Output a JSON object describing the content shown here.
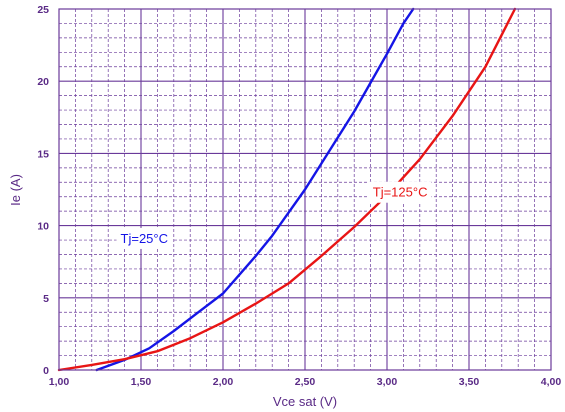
{
  "chart_data": {
    "type": "line",
    "title": "",
    "xlabel": "Vce sat (V)",
    "ylabel": "Ie (A)",
    "xlim": [
      1.0,
      4.0
    ],
    "ylim": [
      0,
      25
    ],
    "grid": true,
    "x_ticks": [
      "1,00",
      "1,50",
      "2,00",
      "2,50",
      "3,00",
      "3,50",
      "4,00"
    ],
    "y_ticks": [
      "0",
      "5",
      "10",
      "15",
      "20",
      "25"
    ],
    "series": [
      {
        "name": "Tj=25°C",
        "color": "#1515e6",
        "x": [
          1.23,
          1.4,
          1.55,
          1.7,
          1.85,
          2.0,
          2.1,
          2.2,
          2.3,
          2.4,
          2.5,
          2.6,
          2.7,
          2.8,
          2.9,
          3.0,
          3.1,
          3.16
        ],
        "y": [
          0.0,
          0.7,
          1.5,
          2.7,
          4.0,
          5.3,
          6.6,
          7.9,
          9.3,
          10.9,
          12.5,
          14.3,
          16.1,
          17.9,
          19.9,
          21.9,
          24.0,
          25.0
        ]
      },
      {
        "name": "Tj=125°C",
        "color": "#e81515",
        "x": [
          1.0,
          1.2,
          1.4,
          1.6,
          1.8,
          2.0,
          2.2,
          2.4,
          2.6,
          2.8,
          3.0,
          3.2,
          3.4,
          3.6,
          3.78
        ],
        "y": [
          0.0,
          0.35,
          0.75,
          1.3,
          2.2,
          3.3,
          4.6,
          6.0,
          7.9,
          9.9,
          12.1,
          14.6,
          17.6,
          21.0,
          25.0
        ]
      }
    ]
  }
}
